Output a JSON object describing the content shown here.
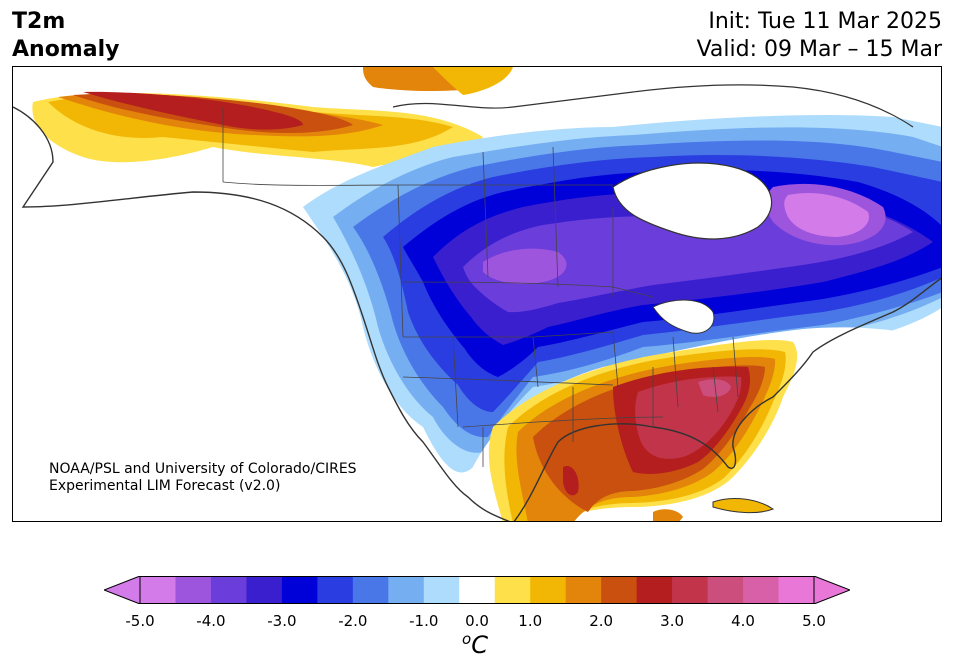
{
  "header": {
    "title_line1": "T2m",
    "title_line2": "Anomaly",
    "init_label": "Init: Tue 11 Mar 2025",
    "valid_label": "Valid: 09 Mar – 15 Mar"
  },
  "map": {
    "region": "North America",
    "credit_line1": "NOAA/PSL and University of Colorado/CIRES",
    "credit_line2": "Experimental LIM Forecast (v2.0)"
  },
  "colorbar": {
    "unit_base": "C",
    "unit_sup": "o",
    "ticks": [
      "-5.0",
      "-4.0",
      "-3.0",
      "-2.0",
      "-1.0",
      "0.0",
      "1.0",
      "2.0",
      "3.0",
      "4.0",
      "5.0"
    ],
    "levels": [
      -5.0,
      -4.5,
      -4.0,
      -3.5,
      -3.0,
      -2.5,
      -2.0,
      -1.5,
      -1.0,
      -0.5,
      0.5,
      1.0,
      1.5,
      2.0,
      2.5,
      3.0,
      3.5,
      4.0,
      4.5,
      5.0
    ],
    "colors": [
      "#d47bea",
      "#9e55de",
      "#6b3ddb",
      "#3a1fcf",
      "#0000d8",
      "#2a3de0",
      "#4a77e8",
      "#76aef2",
      "#aedcfc",
      "#ffffff",
      "#fee04a",
      "#f2b705",
      "#e2850a",
      "#c9500f",
      "#b41e1e",
      "#c2344a",
      "#cc4e7c",
      "#d860a9",
      "#e877d8"
    ],
    "under_color": "#d47bea",
    "over_color": "#e877d8"
  }
}
